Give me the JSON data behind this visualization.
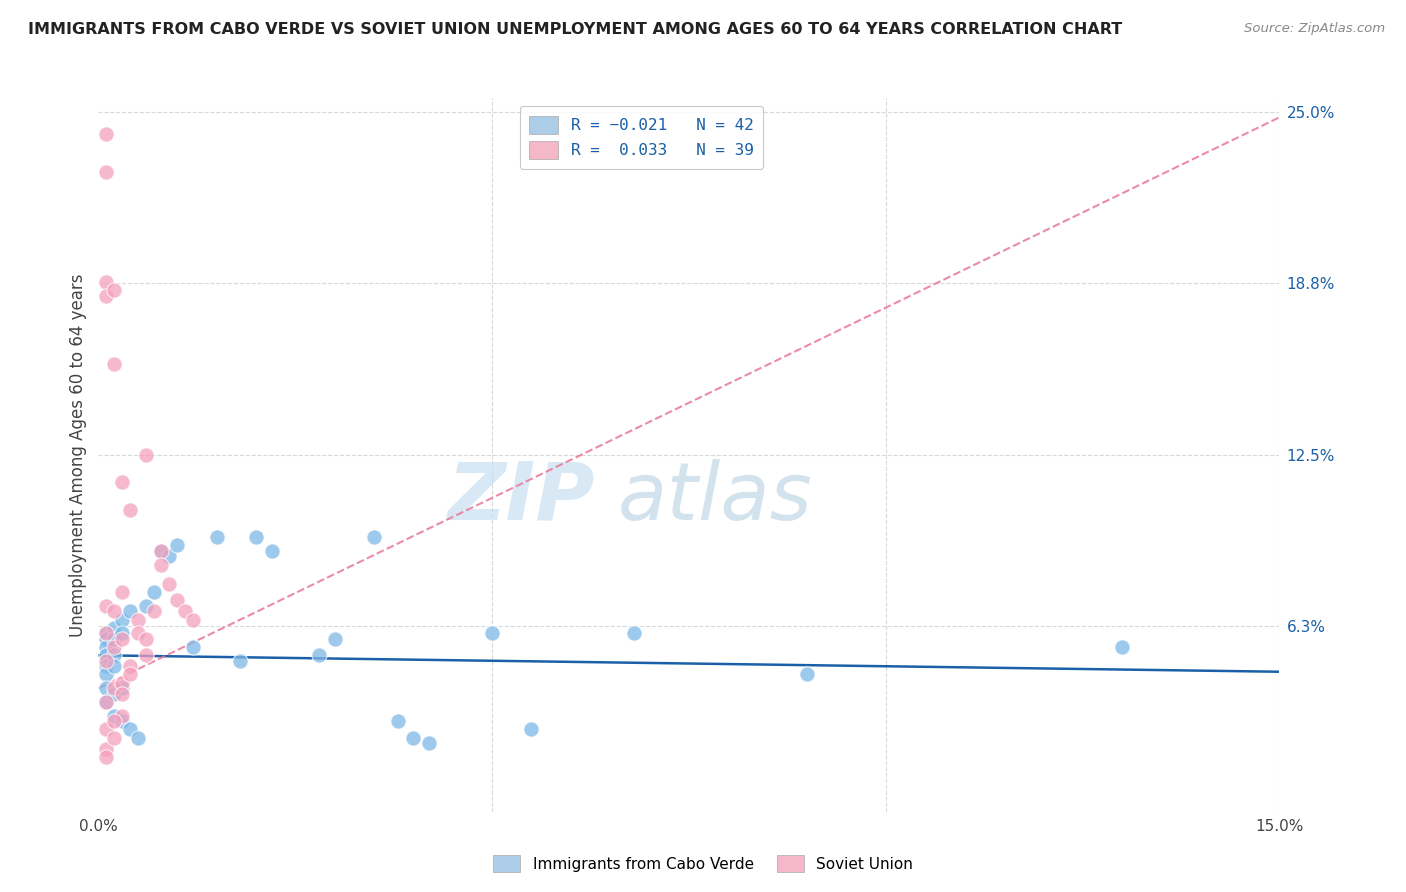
{
  "title": "IMMIGRANTS FROM CABO VERDE VS SOVIET UNION UNEMPLOYMENT AMONG AGES 60 TO 64 YEARS CORRELATION CHART",
  "source": "Source: ZipAtlas.com",
  "ylabel": "Unemployment Among Ages 60 to 64 years",
  "xlim": [
    0.0,
    0.15
  ],
  "ylim": [
    -0.005,
    0.255
  ],
  "cabo_verde_color": "#7db8e8",
  "soviet_union_color": "#f4a0bc",
  "cabo_verde_line_color": "#1a5fa8",
  "soviet_union_line_color": "#e87898",
  "watermark_zip": "ZIP",
  "watermark_atlas": "atlas",
  "background_color": "#ffffff",
  "grid_color": "#d8d8d8",
  "legend_box_blue": "#aecde8",
  "legend_box_pink": "#f4b8c8",
  "legend_text_color": "#1a5fa8",
  "right_tick_color": "#1a5fa8",
  "cabo_verde_x": [
    0.001,
    0.001,
    0.001,
    0.001,
    0.001,
    0.001,
    0.001,
    0.001,
    0.002,
    0.002,
    0.002,
    0.002,
    0.002,
    0.002,
    0.003,
    0.003,
    0.003,
    0.003,
    0.004,
    0.004,
    0.005,
    0.006,
    0.007,
    0.008,
    0.009,
    0.01,
    0.012,
    0.015,
    0.018,
    0.02,
    0.022,
    0.028,
    0.03,
    0.035,
    0.038,
    0.04,
    0.042,
    0.05,
    0.055,
    0.068,
    0.09,
    0.13
  ],
  "cabo_verde_y": [
    0.06,
    0.058,
    0.055,
    0.052,
    0.048,
    0.045,
    0.04,
    0.035,
    0.062,
    0.058,
    0.052,
    0.048,
    0.038,
    0.03,
    0.065,
    0.06,
    0.04,
    0.028,
    0.068,
    0.025,
    0.022,
    0.07,
    0.075,
    0.09,
    0.088,
    0.092,
    0.055,
    0.095,
    0.05,
    0.095,
    0.09,
    0.052,
    0.058,
    0.095,
    0.028,
    0.022,
    0.02,
    0.06,
    0.025,
    0.06,
    0.045,
    0.055
  ],
  "soviet_union_x": [
    0.001,
    0.001,
    0.001,
    0.001,
    0.001,
    0.001,
    0.001,
    0.001,
    0.002,
    0.002,
    0.002,
    0.002,
    0.002,
    0.003,
    0.003,
    0.003,
    0.003,
    0.003,
    0.004,
    0.004,
    0.005,
    0.006,
    0.006,
    0.007,
    0.008,
    0.008,
    0.009,
    0.01,
    0.011,
    0.012,
    0.001,
    0.001,
    0.001,
    0.002,
    0.002,
    0.003,
    0.004,
    0.005,
    0.006
  ],
  "soviet_union_y": [
    0.242,
    0.228,
    0.188,
    0.183,
    0.07,
    0.06,
    0.05,
    0.035,
    0.185,
    0.158,
    0.068,
    0.055,
    0.04,
    0.115,
    0.075,
    0.058,
    0.042,
    0.03,
    0.105,
    0.048,
    0.065,
    0.125,
    0.052,
    0.068,
    0.09,
    0.085,
    0.078,
    0.072,
    0.068,
    0.065,
    0.025,
    0.018,
    0.015,
    0.028,
    0.022,
    0.038,
    0.045,
    0.06,
    0.058
  ],
  "cv_trend_x": [
    0.0,
    0.15
  ],
  "cv_trend_y": [
    0.052,
    0.046
  ],
  "su_trend_x": [
    0.0,
    0.15
  ],
  "su_trend_y": [
    0.04,
    0.248
  ]
}
